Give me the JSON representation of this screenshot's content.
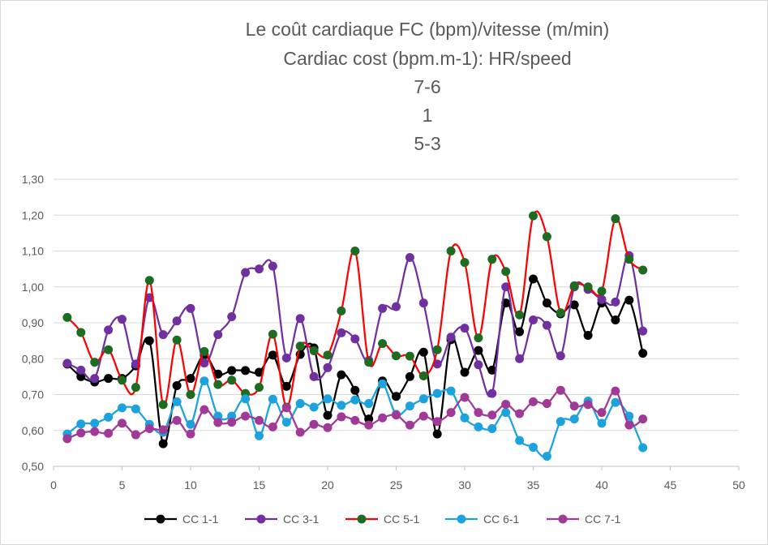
{
  "chart_data": {
    "type": "scatter",
    "title_lines": [
      "Le coût cardiaque FC (bpm)/vitesse (m/min)",
      "Cardiac cost (bpm.m-1): HR/speed",
      "7-6",
      "1",
      "5-3"
    ],
    "xlabel": "",
    "ylabel": "",
    "xlim": [
      0,
      50
    ],
    "ylim": [
      0.5,
      1.3
    ],
    "x_ticks": [
      0,
      5,
      10,
      15,
      20,
      25,
      30,
      35,
      40,
      45,
      50
    ],
    "x_tick_labels": [
      "0",
      "5",
      "10",
      "15",
      "20",
      "25",
      "30",
      "35",
      "40",
      "45",
      "50"
    ],
    "y_ticks": [
      0.5,
      0.6,
      0.7,
      0.8,
      0.9,
      1.0,
      1.1,
      1.2,
      1.3
    ],
    "y_tick_labels": [
      "0,50",
      "0,60",
      "0,70",
      "0,80",
      "0,90",
      "1,00",
      "1,10",
      "1,20",
      "1,30"
    ],
    "grid": "horizontal",
    "legend_position": "bottom",
    "x": [
      1,
      2,
      3,
      4,
      5,
      6,
      7,
      8,
      9,
      10,
      11,
      12,
      13,
      14,
      15,
      16,
      17,
      18,
      19,
      20,
      21,
      22,
      23,
      24,
      25,
      26,
      27,
      28,
      29,
      30,
      31,
      32,
      33,
      34,
      35,
      36,
      37,
      38,
      39,
      40,
      41,
      42,
      43
    ],
    "series": [
      {
        "name": "CC 1-1",
        "line_color": "#000000",
        "marker_color": "#000000",
        "values": [
          0.785,
          0.75,
          0.735,
          0.745,
          0.745,
          0.78,
          0.85,
          0.563,
          0.725,
          0.745,
          0.81,
          0.757,
          0.767,
          0.767,
          0.762,
          0.81,
          0.723,
          0.812,
          0.83,
          0.642,
          0.755,
          0.712,
          0.632,
          0.738,
          0.695,
          0.75,
          0.818,
          0.59,
          0.853,
          0.762,
          0.823,
          0.768,
          0.955,
          0.875,
          1.022,
          0.955,
          0.925,
          0.95,
          0.865,
          0.955,
          0.908,
          0.963,
          0.815
        ]
      },
      {
        "name": "CC 3-1",
        "line_color": "#7030A0",
        "marker_color": "#7030A0",
        "values": [
          0.787,
          0.768,
          0.745,
          0.88,
          0.91,
          0.785,
          0.97,
          0.867,
          0.905,
          0.94,
          0.788,
          0.867,
          0.917,
          1.04,
          1.05,
          1.058,
          0.802,
          0.912,
          0.75,
          0.775,
          0.872,
          0.855,
          0.795,
          0.94,
          0.945,
          1.082,
          0.955,
          0.785,
          0.86,
          0.885,
          0.783,
          0.703,
          1.0,
          0.8,
          0.908,
          0.893,
          0.808,
          1.0,
          0.993,
          0.965,
          0.958,
          1.087,
          0.877
        ]
      },
      {
        "name": "CC 5-1",
        "line_color": "#FF0000",
        "marker_color": "#1E6B22",
        "values": [
          0.915,
          0.873,
          0.79,
          0.825,
          0.74,
          0.72,
          1.018,
          0.672,
          0.852,
          0.7,
          0.82,
          0.728,
          0.74,
          0.703,
          0.72,
          0.868,
          0.665,
          0.835,
          0.822,
          0.81,
          0.933,
          1.1,
          0.79,
          0.842,
          0.808,
          0.807,
          0.752,
          0.825,
          1.1,
          1.068,
          0.858,
          1.077,
          1.043,
          0.922,
          1.198,
          1.14,
          0.928,
          1.003,
          1.0,
          0.988,
          1.19,
          1.077,
          1.047
        ]
      },
      {
        "name": "CC 6-1",
        "line_color": "#1CA2DC",
        "marker_color": "#1CA2DC",
        "values": [
          0.59,
          0.618,
          0.62,
          0.637,
          0.663,
          0.66,
          0.617,
          0.595,
          0.68,
          0.617,
          0.738,
          0.64,
          0.64,
          0.688,
          0.585,
          0.687,
          0.623,
          0.675,
          0.665,
          0.688,
          0.67,
          0.685,
          0.675,
          0.73,
          0.645,
          0.668,
          0.688,
          0.703,
          0.71,
          0.635,
          0.61,
          0.605,
          0.65,
          0.572,
          0.553,
          0.528,
          0.625,
          0.632,
          0.682,
          0.62,
          0.678,
          0.64,
          0.552
        ]
      },
      {
        "name": "CC 7-1",
        "line_color": "#A03A96",
        "marker_color": "#A03A96",
        "values": [
          0.577,
          0.593,
          0.597,
          0.592,
          0.62,
          0.588,
          0.605,
          0.602,
          0.628,
          0.59,
          0.658,
          0.622,
          0.623,
          0.64,
          0.628,
          0.61,
          0.663,
          0.595,
          0.617,
          0.608,
          0.638,
          0.628,
          0.615,
          0.635,
          0.643,
          0.615,
          0.64,
          0.625,
          0.65,
          0.692,
          0.65,
          0.643,
          0.673,
          0.647,
          0.68,
          0.675,
          0.712,
          0.668,
          0.672,
          0.65,
          0.71,
          0.615,
          0.632
        ]
      }
    ]
  }
}
